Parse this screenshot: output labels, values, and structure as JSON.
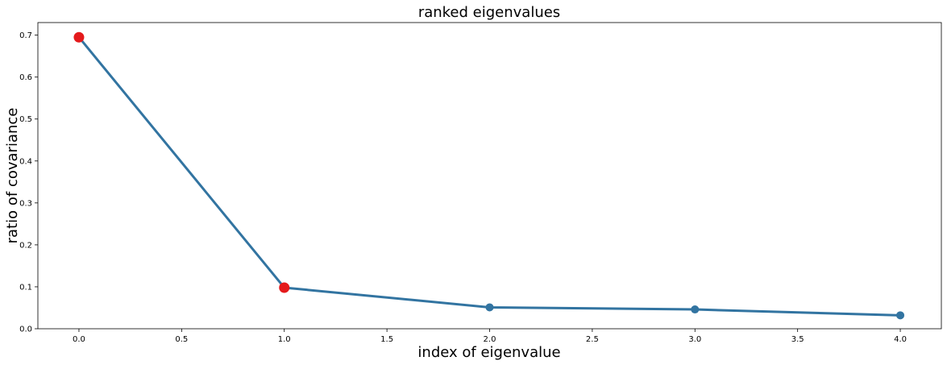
{
  "chart_data": {
    "type": "line",
    "title": "ranked eigenvalues",
    "xlabel": "index of eigenvalue",
    "ylabel": "ratio of covariance",
    "x": [
      0,
      1,
      2,
      3,
      4
    ],
    "series": [
      {
        "values": [
          0.695,
          0.098,
          0.051,
          0.046,
          0.032
        ],
        "color": "#3274a1"
      }
    ],
    "highlighted_points": {
      "x": [
        0,
        1
      ],
      "values": [
        0.695,
        0.098
      ],
      "color": "#e41a1c"
    },
    "xlim": [
      -0.2,
      4.2
    ],
    "ylim": [
      0.0,
      0.73
    ],
    "xticks": [
      "0.0",
      "0.5",
      "1.0",
      "1.5",
      "2.0",
      "2.5",
      "3.0",
      "3.5",
      "4.0"
    ],
    "yticks": [
      "0.0",
      "0.1",
      "0.2",
      "0.3",
      "0.4",
      "0.5",
      "0.6",
      "0.7"
    ],
    "grid": false,
    "legend": "none"
  }
}
